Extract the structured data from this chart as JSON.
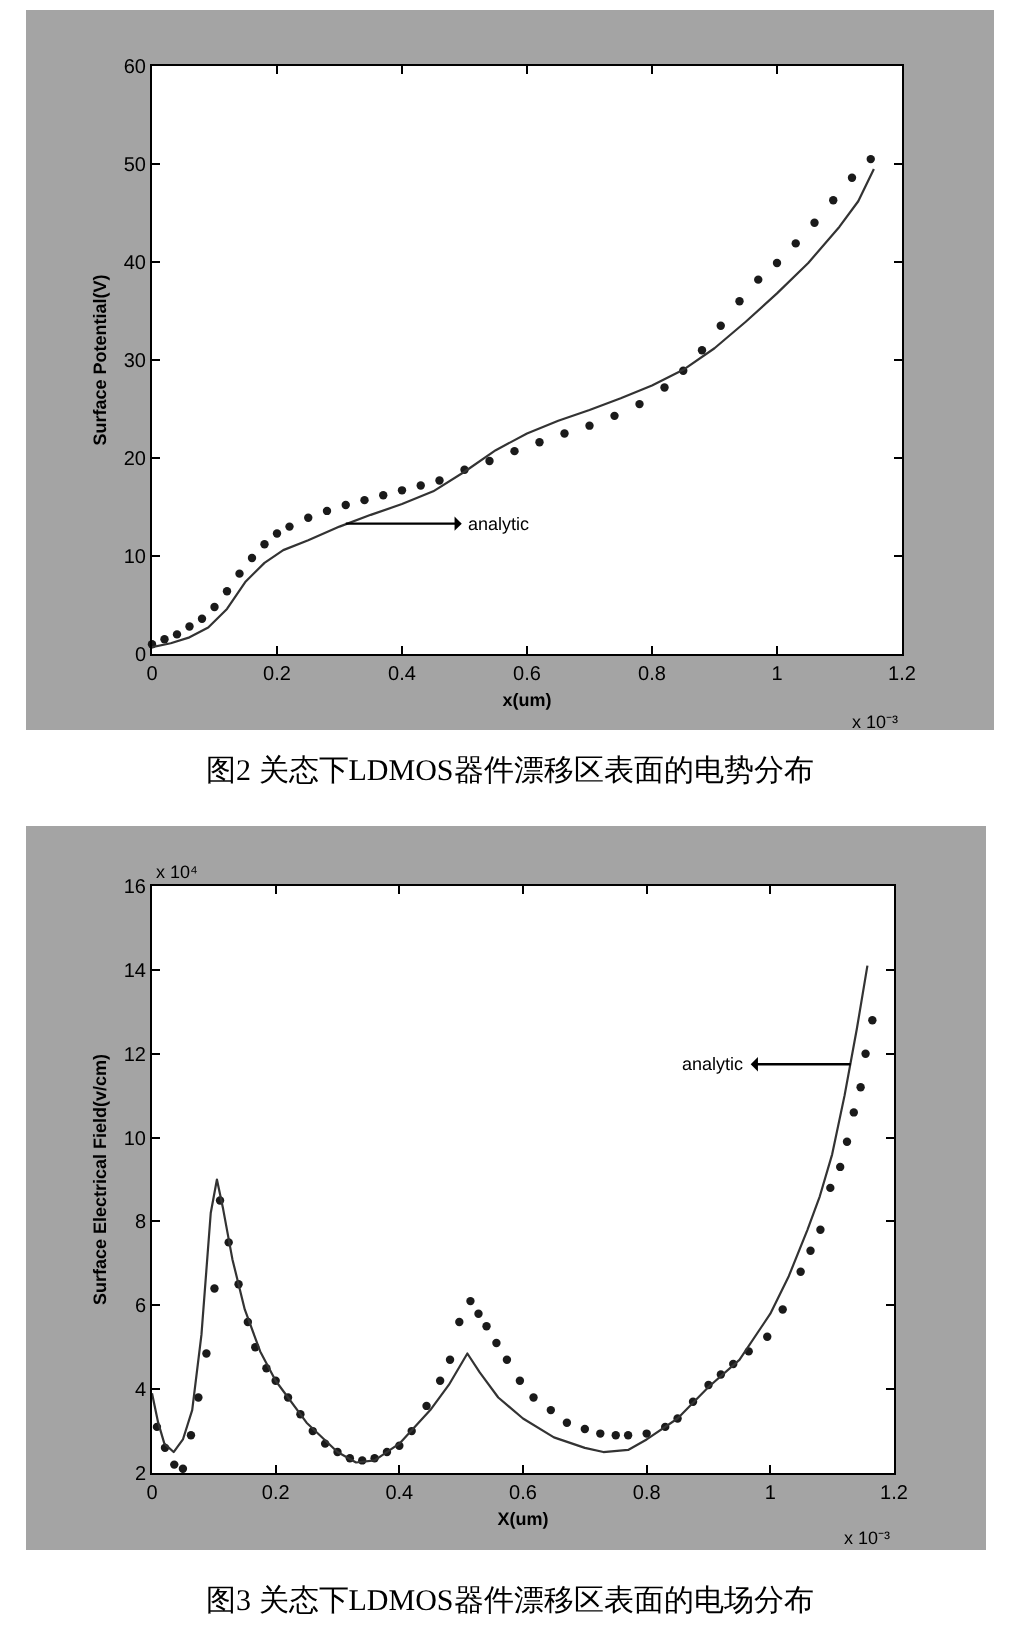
{
  "chart_data": [
    {
      "type": "line",
      "title": "图2 关态下LDMOS器件漂移区表面的电势分布",
      "xlabel": "x(um)",
      "ylabel": "Surface Potential(V)",
      "annotations": [
        "x 10⁻³",
        {
          "text": "analytic",
          "x": 0.31,
          "y": 13.3
        }
      ],
      "xlim": [
        0,
        1.2
      ],
      "ylim": [
        0,
        60
      ],
      "xticks": [
        0,
        0.2,
        0.4,
        0.6,
        0.8,
        1,
        1.2
      ],
      "yticks": [
        0,
        10,
        20,
        30,
        40,
        50,
        60
      ],
      "series": [
        {
          "type": "scatter",
          "color": "#1a1a1a",
          "x": [
            0,
            0.02,
            0.04,
            0.06,
            0.08,
            0.1,
            0.12,
            0.14,
            0.16,
            0.18,
            0.2,
            0.22,
            0.25,
            0.28,
            0.31,
            0.34,
            0.37,
            0.4,
            0.43,
            0.46,
            0.5,
            0.54,
            0.58,
            0.62,
            0.66,
            0.7,
            0.74,
            0.78,
            0.82,
            0.85,
            0.88,
            0.91,
            0.94,
            0.97,
            1,
            1.03,
            1.06,
            1.09,
            1.12,
            1.15
          ],
          "values": [
            1.0,
            1.5,
            2.0,
            2.8,
            3.6,
            4.8,
            6.4,
            8.2,
            9.8,
            11.2,
            12.3,
            13.0,
            13.9,
            14.6,
            15.2,
            15.7,
            16.2,
            16.7,
            17.2,
            17.7,
            18.8,
            19.7,
            20.7,
            21.6,
            22.5,
            23.3,
            24.3,
            25.5,
            27.2,
            28.9,
            31.0,
            33.5,
            36.0,
            38.2,
            39.9,
            41.9,
            44.0,
            46.3,
            48.6,
            50.5
          ]
        },
        {
          "color": "#333333",
          "x": [
            0,
            0.03,
            0.06,
            0.09,
            0.12,
            0.15,
            0.18,
            0.21,
            0.25,
            0.3,
            0.35,
            0.4,
            0.45,
            0.5,
            0.55,
            0.6,
            0.65,
            0.7,
            0.75,
            0.8,
            0.85,
            0.9,
            0.95,
            1,
            1.05,
            1.1,
            1.13,
            1.155
          ],
          "values": [
            0.7,
            1.1,
            1.7,
            2.7,
            4.6,
            7.4,
            9.3,
            10.6,
            11.6,
            13.0,
            14.2,
            15.3,
            16.6,
            18.6,
            20.8,
            22.5,
            23.8,
            24.9,
            26.1,
            27.4,
            29.0,
            31.2,
            33.9,
            36.8,
            39.9,
            43.6,
            46.2,
            49.5
          ]
        }
      ]
    },
    {
      "type": "line",
      "title": "图3 关态下LDMOS器件漂移区表面的电场分布",
      "xlabel": "X(um)",
      "ylabel": "Surface Electrical Field(v/cm)",
      "annotations": [
        "x 10⁴",
        "x 10⁻³",
        {
          "text": "analytic",
          "x": 1.13,
          "y": 11.75
        }
      ],
      "xlim": [
        0,
        1.2
      ],
      "ylim": [
        2,
        16
      ],
      "xticks": [
        0,
        0.2,
        0.4,
        0.6,
        0.8,
        1,
        1.2
      ],
      "yticks": [
        2,
        4,
        6,
        8,
        10,
        12,
        14,
        16
      ],
      "series": [
        {
          "type": "scatter",
          "color": "#1a1a1a",
          "x": [
            0.008,
            0.021,
            0.036,
            0.05,
            0.063,
            0.075,
            0.088,
            0.101,
            0.11,
            0.124,
            0.14,
            0.155,
            0.167,
            0.185,
            0.2,
            0.22,
            0.24,
            0.26,
            0.28,
            0.3,
            0.32,
            0.34,
            0.36,
            0.38,
            0.4,
            0.42,
            0.444,
            0.466,
            0.482,
            0.497,
            0.515,
            0.528,
            0.541,
            0.557,
            0.574,
            0.595,
            0.617,
            0.645,
            0.671,
            0.7,
            0.725,
            0.75,
            0.77,
            0.8,
            0.83,
            0.85,
            0.875,
            0.9,
            0.92,
            0.94,
            0.965,
            0.995,
            1.02,
            1.049,
            1.065,
            1.081,
            1.097,
            1.113,
            1.124,
            1.135,
            1.146,
            1.154,
            1.165
          ],
          "values": [
            3.1,
            2.6,
            2.2,
            2.1,
            2.9,
            3.8,
            4.85,
            6.4,
            8.5,
            7.5,
            6.5,
            5.6,
            5.0,
            4.5,
            4.2,
            3.8,
            3.4,
            3.0,
            2.7,
            2.5,
            2.35,
            2.3,
            2.35,
            2.5,
            2.65,
            3.0,
            3.6,
            4.2,
            4.7,
            5.6,
            6.1,
            5.8,
            5.5,
            5.1,
            4.7,
            4.2,
            3.8,
            3.5,
            3.2,
            3.05,
            2.94,
            2.9,
            2.9,
            2.94,
            3.1,
            3.3,
            3.7,
            4.1,
            4.35,
            4.6,
            4.9,
            5.25,
            5.9,
            6.8,
            7.3,
            7.8,
            8.8,
            9.3,
            9.9,
            10.6,
            11.2,
            12.0,
            12.8
          ]
        },
        {
          "color": "#333333",
          "x": [
            0,
            0.01,
            0.02,
            0.035,
            0.05,
            0.065,
            0.08,
            0.095,
            0.105,
            0.115,
            0.13,
            0.15,
            0.175,
            0.2,
            0.25,
            0.3,
            0.33,
            0.36,
            0.4,
            0.45,
            0.48,
            0.51,
            0.53,
            0.56,
            0.6,
            0.65,
            0.7,
            0.73,
            0.77,
            0.8,
            0.85,
            0.9,
            0.95,
            1,
            1.03,
            1.06,
            1.08,
            1.1,
            1.12,
            1.14,
            1.157
          ],
          "values": [
            3.9,
            3.2,
            2.7,
            2.5,
            2.8,
            3.5,
            5.3,
            8.2,
            9.0,
            8.3,
            7.1,
            5.9,
            4.9,
            4.2,
            3.2,
            2.5,
            2.25,
            2.3,
            2.7,
            3.5,
            4.1,
            4.85,
            4.4,
            3.8,
            3.3,
            2.85,
            2.6,
            2.5,
            2.55,
            2.8,
            3.3,
            4.05,
            4.7,
            5.8,
            6.7,
            7.8,
            8.6,
            9.6,
            11.0,
            12.6,
            14.1
          ]
        }
      ]
    }
  ]
}
